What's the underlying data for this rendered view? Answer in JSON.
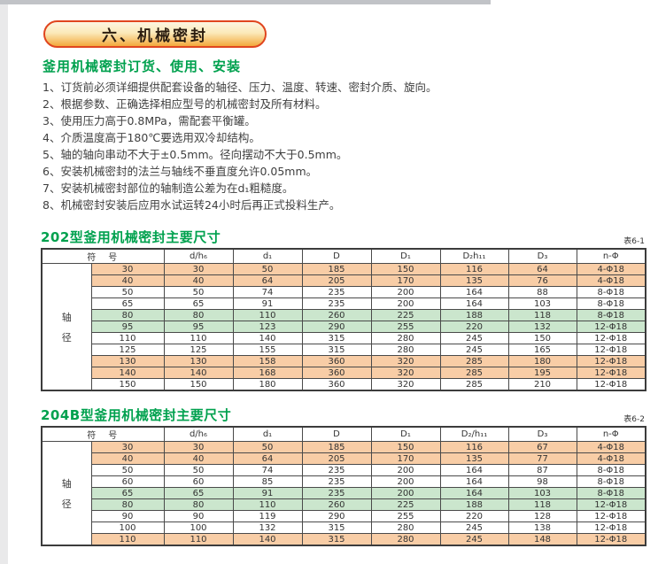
{
  "page": {
    "badge_title": "六、机械密封",
    "intro_heading": "釜用机械密封订货、使用、安装",
    "notes": [
      "1、订货前必须详细提供配套设备的轴径、压力、温度、转速、密封介质、旋向。",
      "2、根据参数、正确选择相应型号的机械密封及所有材料。",
      "3、使用压力高于0.8MPa，需配套平衡罐。",
      "4、介质温度高于180℃要选用双冷却结构。",
      "5、轴的轴向串动不大于±0.5mm。径向摆动不大于0.5mm。",
      "6、安装机械密封的法兰与轴线不垂直度允许0.05mm。",
      "7、安装机械密封部位的轴制造公差为在d₁粗糙度。",
      "8、机械密封安装后应用水试运转24小时后再正式投料生产。"
    ]
  },
  "colors": {
    "heading_green": "#00a14e",
    "row_peach": "#f8cda6",
    "row_green": "#cbe6cd",
    "badge_border": "#e0461f",
    "badge_gradient_top": "#fdf6e1",
    "badge_gradient_bottom": "#f3a93c"
  },
  "tables": [
    {
      "section_title": "202型釜用机械密封主要尺寸",
      "table_label": "表6-1",
      "symbol_header": "符　号",
      "axis_label": [
        "轴",
        "径"
      ],
      "columns": [
        "d/h₆",
        "d₁",
        "D",
        "D₁",
        "D₂h₁₁",
        "D₃",
        "n-Φ"
      ],
      "rows": [
        {
          "bg": "peach",
          "cells": [
            "30",
            "30",
            "50",
            "185",
            "150",
            "116",
            "64",
            "4-Φ18"
          ]
        },
        {
          "bg": "peach",
          "cells": [
            "40",
            "40",
            "64",
            "205",
            "170",
            "135",
            "76",
            "4-Φ18"
          ]
        },
        {
          "bg": "white",
          "cells": [
            "50",
            "50",
            "74",
            "235",
            "200",
            "164",
            "88",
            "8-Φ18"
          ]
        },
        {
          "bg": "white",
          "cells": [
            "65",
            "65",
            "91",
            "235",
            "200",
            "164",
            "103",
            "8-Φ18"
          ]
        },
        {
          "bg": "green",
          "cells": [
            "80",
            "80",
            "110",
            "260",
            "225",
            "188",
            "118",
            "8-Φ18"
          ]
        },
        {
          "bg": "green",
          "cells": [
            "95",
            "95",
            "123",
            "290",
            "255",
            "220",
            "132",
            "12-Φ18"
          ]
        },
        {
          "bg": "white",
          "cells": [
            "110",
            "110",
            "140",
            "315",
            "280",
            "245",
            "150",
            "12-Φ18"
          ]
        },
        {
          "bg": "white",
          "cells": [
            "125",
            "125",
            "155",
            "315",
            "280",
            "245",
            "165",
            "12-Φ18"
          ]
        },
        {
          "bg": "peach",
          "cells": [
            "130",
            "130",
            "158",
            "360",
            "320",
            "285",
            "180",
            "12-Φ18"
          ]
        },
        {
          "bg": "peach",
          "cells": [
            "140",
            "140",
            "168",
            "360",
            "320",
            "285",
            "195",
            "12-Φ18"
          ]
        },
        {
          "bg": "white",
          "cells": [
            "150",
            "150",
            "180",
            "360",
            "320",
            "285",
            "210",
            "12-Φ18"
          ]
        }
      ]
    },
    {
      "section_title": "204B型釜用机械密封主要尺寸",
      "table_label": "表6-2",
      "symbol_header": "符　号",
      "axis_label": [
        "轴",
        "径"
      ],
      "columns": [
        "d/h₆",
        "d₁",
        "D",
        "D₁",
        "D₂/h₁₁",
        "D₃",
        "n-Φ"
      ],
      "rows": [
        {
          "bg": "peach",
          "cells": [
            "30",
            "30",
            "50",
            "185",
            "150",
            "116",
            "67",
            "4-Φ18"
          ]
        },
        {
          "bg": "peach",
          "cells": [
            "40",
            "40",
            "64",
            "205",
            "170",
            "135",
            "77",
            "4-Φ18"
          ]
        },
        {
          "bg": "white",
          "cells": [
            "50",
            "50",
            "74",
            "235",
            "200",
            "164",
            "87",
            "8-Φ18"
          ]
        },
        {
          "bg": "white",
          "cells": [
            "60",
            "60",
            "85",
            "235",
            "200",
            "164",
            "98",
            "8-Φ18"
          ]
        },
        {
          "bg": "green",
          "cells": [
            "65",
            "65",
            "91",
            "235",
            "200",
            "164",
            "103",
            "8-Φ18"
          ]
        },
        {
          "bg": "green",
          "cells": [
            "80",
            "80",
            "110",
            "260",
            "225",
            "188",
            "118",
            "12-Φ18"
          ]
        },
        {
          "bg": "white",
          "cells": [
            "90",
            "90",
            "119",
            "290",
            "255",
            "220",
            "128",
            "12-Φ18"
          ]
        },
        {
          "bg": "white",
          "cells": [
            "100",
            "100",
            "132",
            "315",
            "280",
            "245",
            "138",
            "12-Φ18"
          ]
        },
        {
          "bg": "peach",
          "cells": [
            "110",
            "110",
            "140",
            "315",
            "280",
            "245",
            "148",
            "12-Φ18"
          ]
        }
      ]
    }
  ]
}
